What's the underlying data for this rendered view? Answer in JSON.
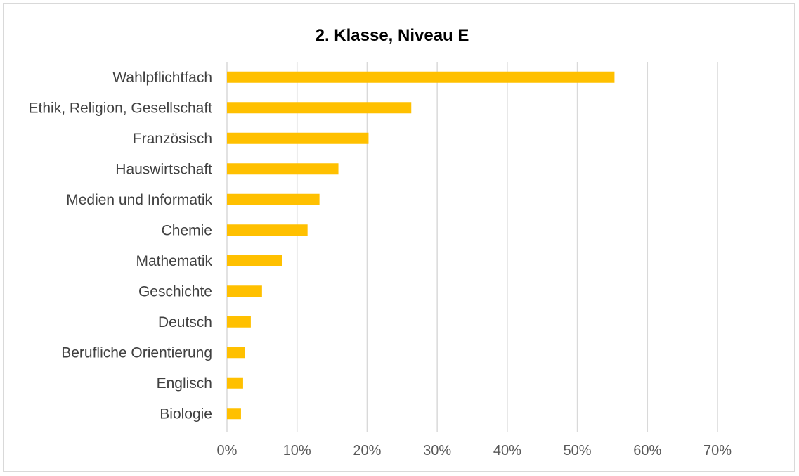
{
  "chart_data": {
    "type": "bar",
    "orientation": "horizontal",
    "title": "2. Klasse, Niveau E",
    "xlabel": "",
    "ylabel": "",
    "categories": [
      "Wahlpflichtfach",
      "Ethik, Religion, Gesellschaft",
      "Französisch",
      "Hauswirtschaft",
      "Medien und Informatik",
      "Chemie",
      "Mathematik",
      "Geschichte",
      "Deutsch",
      "Berufliche Orientierung",
      "Englisch",
      "Biologie"
    ],
    "values": [
      0.553,
      0.263,
      0.202,
      0.159,
      0.132,
      0.115,
      0.079,
      0.05,
      0.034,
      0.026,
      0.023,
      0.02
    ],
    "xlim": [
      0,
      0.7
    ],
    "ticks": [
      "0%",
      "10%",
      "20%",
      "30%",
      "40%",
      "50%",
      "60%",
      "70%"
    ],
    "grid": "vertical",
    "legend": "none",
    "colors": {
      "bar": "#FFC000",
      "grid": "#d9d9d9",
      "frame": "#d9d9d9"
    }
  }
}
